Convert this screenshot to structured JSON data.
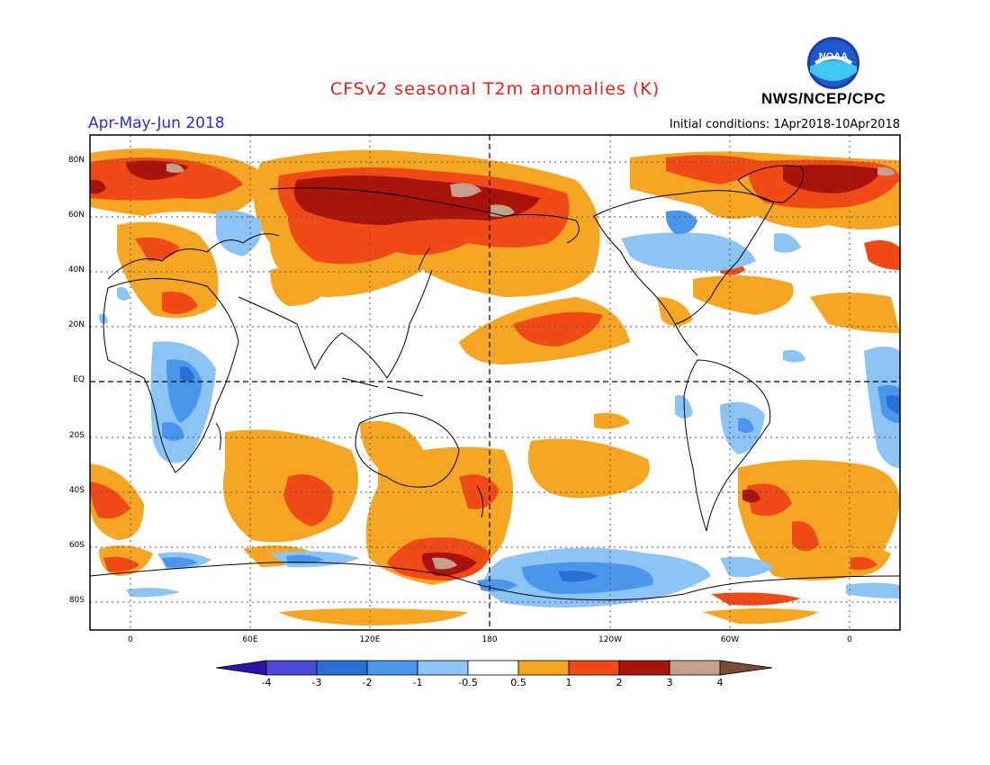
{
  "title": "CFSv2 seasonal T2m anomalies (K)",
  "agency": "NWS/NCEP/CPC",
  "season": "Apr-May-Jun 2018",
  "initial_conditions": "Initial conditions: 1Apr2018-10Apr2018",
  "logo_text": "NOAA",
  "map": {
    "lat_labels": [
      "80N",
      "60N",
      "40N",
      "20N",
      "EQ",
      "20S",
      "40S",
      "60S",
      "80S"
    ],
    "lon_labels": [
      "0",
      "60E",
      "120E",
      "180",
      "120W",
      "60W",
      "0"
    ],
    "colors": {
      "ocean_land_bg": "#ffffff",
      "frame": "#000000"
    }
  },
  "colorbar": {
    "labels": [
      "-4",
      "-3",
      "-2",
      "-1",
      "-0.5",
      "0.5",
      "1",
      "2",
      "3",
      "4"
    ],
    "colors": [
      "#2e13a8",
      "#4a4ad6",
      "#2a6fd6",
      "#4a96ea",
      "#8cc4f5",
      "#ffffff",
      "#f5a623",
      "#f04a16",
      "#a8140c",
      "#c4a08a",
      "#7a4a3a"
    ]
  },
  "anomaly_regions": [
    {
      "name": "east-siberia-warm",
      "level": "warm-2"
    },
    {
      "name": "east-siberia-core",
      "level": "warm-3"
    },
    {
      "name": "north-america-cool",
      "level": "cool-1"
    },
    {
      "name": "africa-cool",
      "level": "cool-1"
    },
    {
      "name": "south-pacific-cool",
      "level": "cool-1"
    },
    {
      "name": "southern-ocean-warm",
      "level": "warm-1"
    }
  ]
}
